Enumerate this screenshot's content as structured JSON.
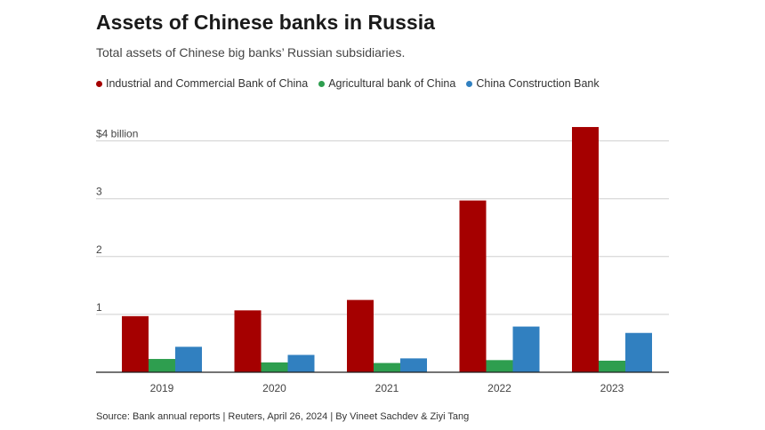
{
  "title": "Assets of Chinese banks in Russia",
  "subtitle": "Total assets of Chinese big banks’ Russian subsidiaries.",
  "source": "Source: Bank annual reports | Reuters, April 26, 2024 | By Vineet Sachdev & Ziyi Tang",
  "legend": [
    {
      "label": "Industrial and Commercial Bank of China",
      "color": "#a50000"
    },
    {
      "label": "Agricultural bank of China",
      "color": "#2e9e4f"
    },
    {
      "label": "China Construction Bank",
      "color": "#3180c0"
    }
  ],
  "chart_data": {
    "type": "bar",
    "categories": [
      "2019",
      "2020",
      "2021",
      "2022",
      "2023"
    ],
    "series": [
      {
        "name": "Industrial and Commercial Bank of China",
        "color": "#a50000",
        "values": [
          0.97,
          1.07,
          1.25,
          2.97,
          4.24
        ]
      },
      {
        "name": "Agricultural bank of China",
        "color": "#2e9e4f",
        "values": [
          0.23,
          0.17,
          0.16,
          0.21,
          0.2
        ]
      },
      {
        "name": "China Construction Bank",
        "color": "#3180c0",
        "values": [
          0.44,
          0.3,
          0.24,
          0.79,
          0.68
        ]
      }
    ],
    "yticks": [
      {
        "value": 1,
        "label": "1"
      },
      {
        "value": 2,
        "label": "2"
      },
      {
        "value": 3,
        "label": "3"
      },
      {
        "value": 4,
        "label": "$4 billion"
      }
    ],
    "ylim": [
      0,
      4.3
    ],
    "grid": true,
    "legend_position": "top-left"
  }
}
